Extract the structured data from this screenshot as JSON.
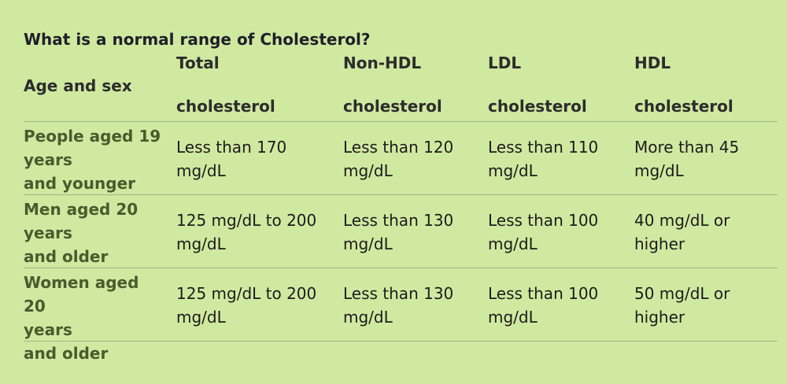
{
  "title": "What is a normal range of Cholesterol?",
  "table": {
    "row_header": "Age and sex",
    "columns": [
      {
        "line1": "Total",
        "line2": "cholesterol"
      },
      {
        "line1": "Non-HDL",
        "line2": "cholesterol"
      },
      {
        "line1": "LDL",
        "line2": "cholesterol"
      },
      {
        "line1": "HDL",
        "line2": "cholesterol"
      }
    ],
    "rows": [
      {
        "label_lines": [
          "People aged 19",
          "years",
          "and younger"
        ],
        "cells": [
          [
            "Less than 170",
            "mg/dL"
          ],
          [
            "Less than 120",
            "mg/dL"
          ],
          [
            "Less than 110",
            "mg/dL"
          ],
          [
            "More than 45",
            "mg/dL"
          ]
        ]
      },
      {
        "label_lines": [
          "Men aged 20",
          "years",
          "and older"
        ],
        "cells": [
          [
            "125 mg/dL to 200",
            "mg/dL"
          ],
          [
            "Less than 130",
            "mg/dL"
          ],
          [
            "Less than 100",
            "mg/dL"
          ],
          [
            "40 mg/dL or",
            "higher"
          ]
        ]
      },
      {
        "label_lines": [
          "Women aged 20",
          "years",
          "and older"
        ],
        "cells": [
          [
            "125 mg/dL to 200",
            "mg/dL"
          ],
          [
            "Less than 130",
            "mg/dL"
          ],
          [
            "Less than 100",
            "mg/dL"
          ],
          [
            "50 mg/dL or",
            "higher"
          ]
        ]
      }
    ]
  }
}
